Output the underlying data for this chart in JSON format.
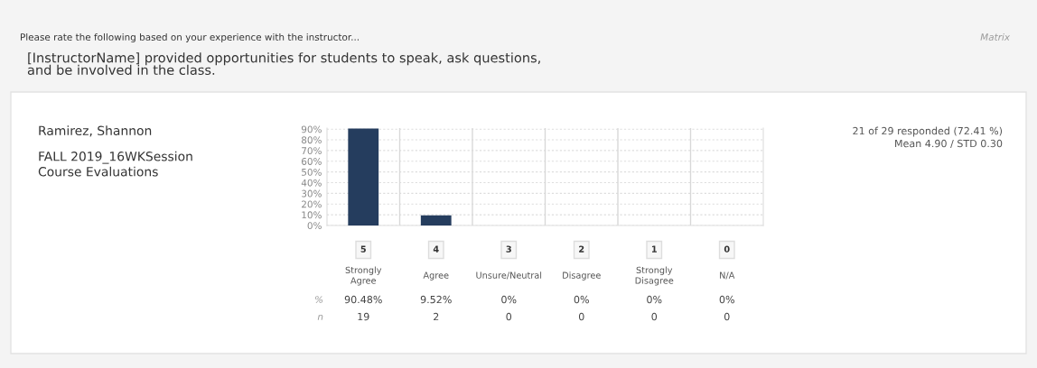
{
  "chart_data": {
    "type": "bar",
    "title": "Please rate the following based on your experience with the instructor...",
    "subtitle": "[InstructorName] provided opportunities for students to speak, ask questions,\nand be involved in the class.",
    "categories": [
      "Strongly\nAgree",
      "Agree",
      "Unsure/Neutral",
      "Disagree",
      "Strongly\nDisagree",
      "N/A"
    ],
    "values": [
      90.48,
      9.52,
      0,
      0,
      0,
      0
    ],
    "value_labels": [
      "90.48%",
      "9.52%",
      "0%",
      "0%",
      "0%",
      "0%"
    ],
    "color": "#253d5e",
    "ylim": [
      0,
      91
    ],
    "yticks": [
      {
        "value": 0,
        "label": "0%"
      },
      {
        "value": 10,
        "label": "10%"
      },
      {
        "value": 20,
        "label": "20%"
      },
      {
        "value": 30,
        "label": "30%"
      },
      {
        "value": 40,
        "label": "40%"
      },
      {
        "value": 50,
        "label": "50%"
      },
      {
        "value": 60,
        "label": "60%"
      },
      {
        "value": 70,
        "label": "70%"
      },
      {
        "value": 80,
        "label": "80%"
      },
      {
        "value": 90,
        "label": "90%"
      }
    ],
    "grid": true,
    "annotations": [
      "Matrix",
      "Ramirez, Shannon",
      "FALL 2019_16WKSession\nCourse Evaluations",
      "21 of 29 responded (72.41 %)",
      "Mean 4.90 / STD 0.30",
      "5",
      "4",
      "3",
      "2",
      "1",
      "0",
      "%",
      "n",
      "19",
      "2",
      "0",
      "0",
      "0",
      "0"
    ]
  }
}
